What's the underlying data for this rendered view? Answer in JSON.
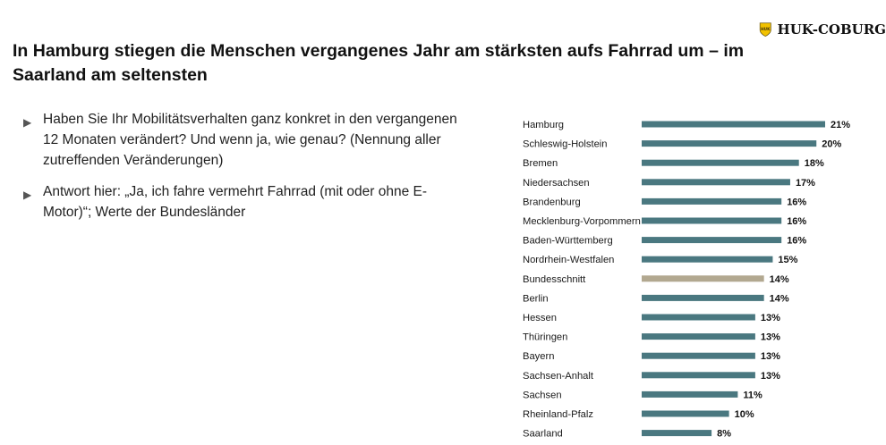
{
  "headline": "In Hamburg stiegen die Menschen vergangenes Jahr am stärksten aufs Fahrrad um – im Saarland am seltensten",
  "logo": {
    "text": "HUK-COBURG",
    "shield_text": "HUK"
  },
  "bullets": [
    "Haben Sie Ihr Mobilitätsverhalten ganz konkret in den vergangenen 12 Monaten verändert? Und wenn ja, wie genau? (Nennung aller zutreffenden Veränderungen)",
    "Antwort hier: „Ja, ich fahre vermehrt Fahrrad (mit oder ohne E-Motor)“; Werte der Bundesländer"
  ],
  "colors": {
    "bar": "#4a7880",
    "highlight": "#b2a890",
    "logo_shield": "#f2c200",
    "bullet_arrow": "#555555"
  },
  "chart_data": {
    "type": "bar",
    "orientation": "horizontal",
    "categories": [
      "Hamburg",
      "Schleswig-Holstein",
      "Bremen",
      "Niedersachsen",
      "Brandenburg",
      "Mecklenburg-Vorpommern",
      "Baden-Württemberg",
      "Nordrhein-Westfalen",
      "Bundesschnitt",
      "Berlin",
      "Hessen",
      "Thüringen",
      "Bayern",
      "Sachsen-Anhalt",
      "Sachsen",
      "Rheinland-Pfalz",
      "Saarland"
    ],
    "values": [
      21,
      20,
      18,
      17,
      16,
      16,
      16,
      15,
      14,
      14,
      13,
      13,
      13,
      13,
      11,
      10,
      8
    ],
    "value_labels": [
      "21%",
      "20%",
      "18%",
      "17%",
      "16%",
      "16%",
      "16%",
      "15%",
      "14%",
      "14%",
      "13%",
      "13%",
      "13%",
      "13%",
      "11%",
      "10%",
      "8%"
    ],
    "highlight_category": "Bundesschnitt",
    "xlim": [
      0,
      21
    ],
    "grid": false
  }
}
